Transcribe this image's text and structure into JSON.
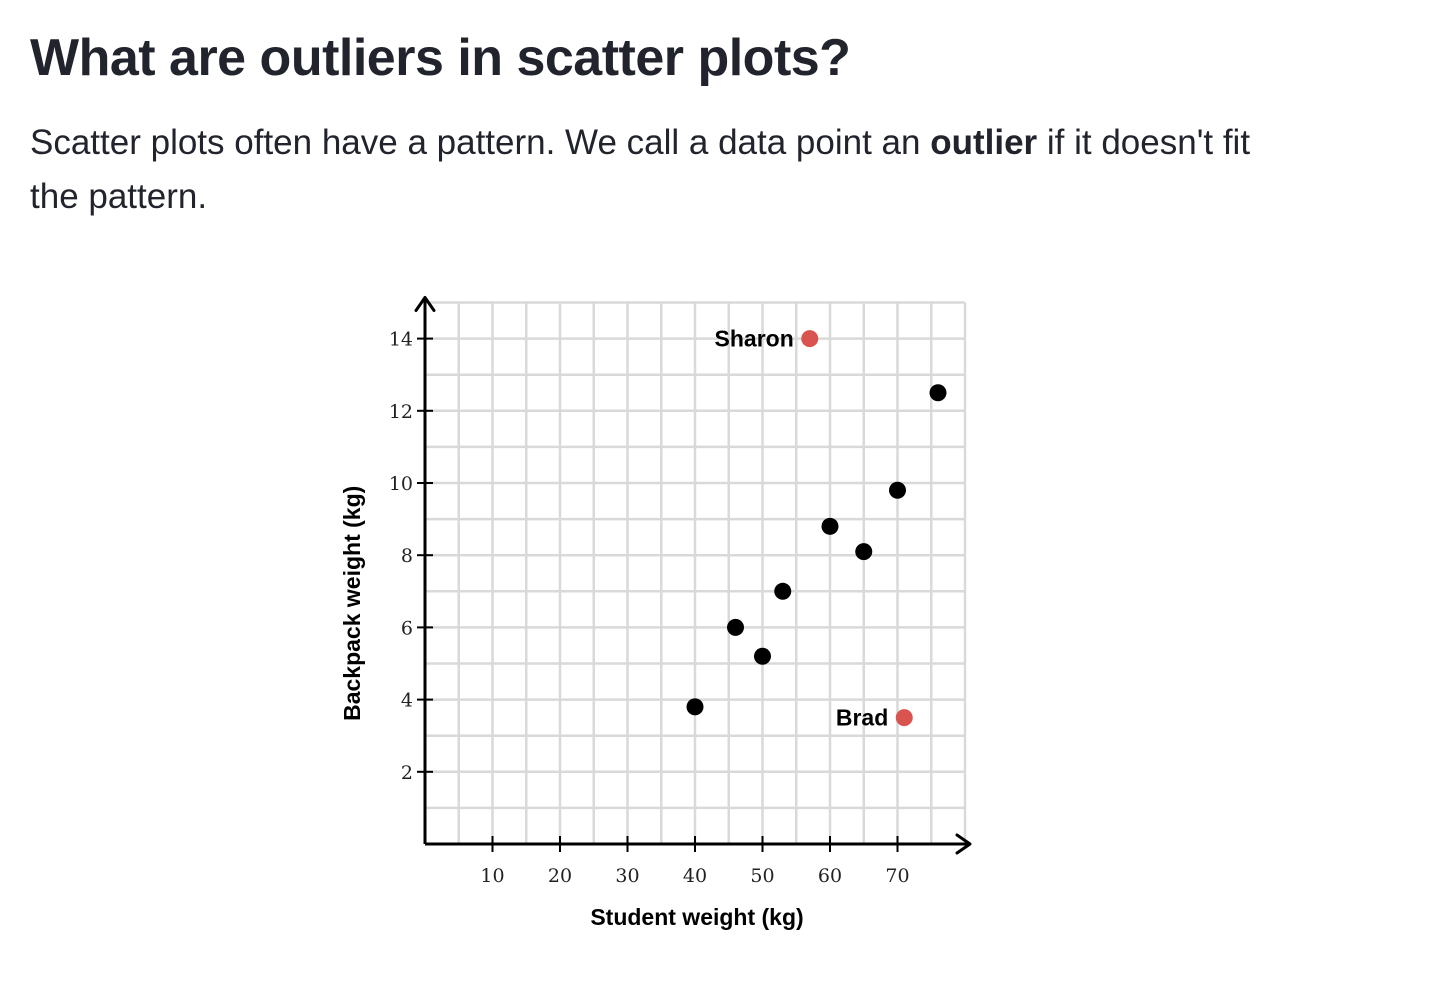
{
  "article": {
    "title": "What are outliers in scatter plots?",
    "intro_before": "Scatter plots often have a pattern. We call a data point an ",
    "intro_bold": "outlier",
    "intro_after": " if it doesn't fit the pattern."
  },
  "chart_data": {
    "type": "scatter",
    "xlabel": "Student weight (kg)",
    "ylabel": "Backpack weight (kg)",
    "xlim": [
      0,
      80
    ],
    "ylim": [
      0,
      15
    ],
    "x_ticks": [
      10,
      20,
      30,
      40,
      50,
      60,
      70
    ],
    "y_ticks": [
      2,
      4,
      6,
      8,
      10,
      12,
      14
    ],
    "x_minor_step": 5,
    "y_minor_step": 1,
    "grid": true,
    "colors": {
      "regular": "#000000",
      "outlier": "#d9534f",
      "grid": "#d9d9d9",
      "axis": "#000000"
    },
    "series": [
      {
        "role": "regular",
        "points": [
          {
            "x": 40,
            "y": 3.8
          },
          {
            "x": 46,
            "y": 6.0
          },
          {
            "x": 50,
            "y": 5.2
          },
          {
            "x": 53,
            "y": 7.0
          },
          {
            "x": 60,
            "y": 8.8
          },
          {
            "x": 65,
            "y": 8.1
          },
          {
            "x": 70,
            "y": 9.8
          },
          {
            "x": 76,
            "y": 12.5
          }
        ]
      },
      {
        "role": "outlier",
        "points": [
          {
            "x": 57,
            "y": 14.0,
            "label": "Sharon"
          },
          {
            "x": 71,
            "y": 3.5,
            "label": "Brad"
          }
        ]
      }
    ]
  }
}
